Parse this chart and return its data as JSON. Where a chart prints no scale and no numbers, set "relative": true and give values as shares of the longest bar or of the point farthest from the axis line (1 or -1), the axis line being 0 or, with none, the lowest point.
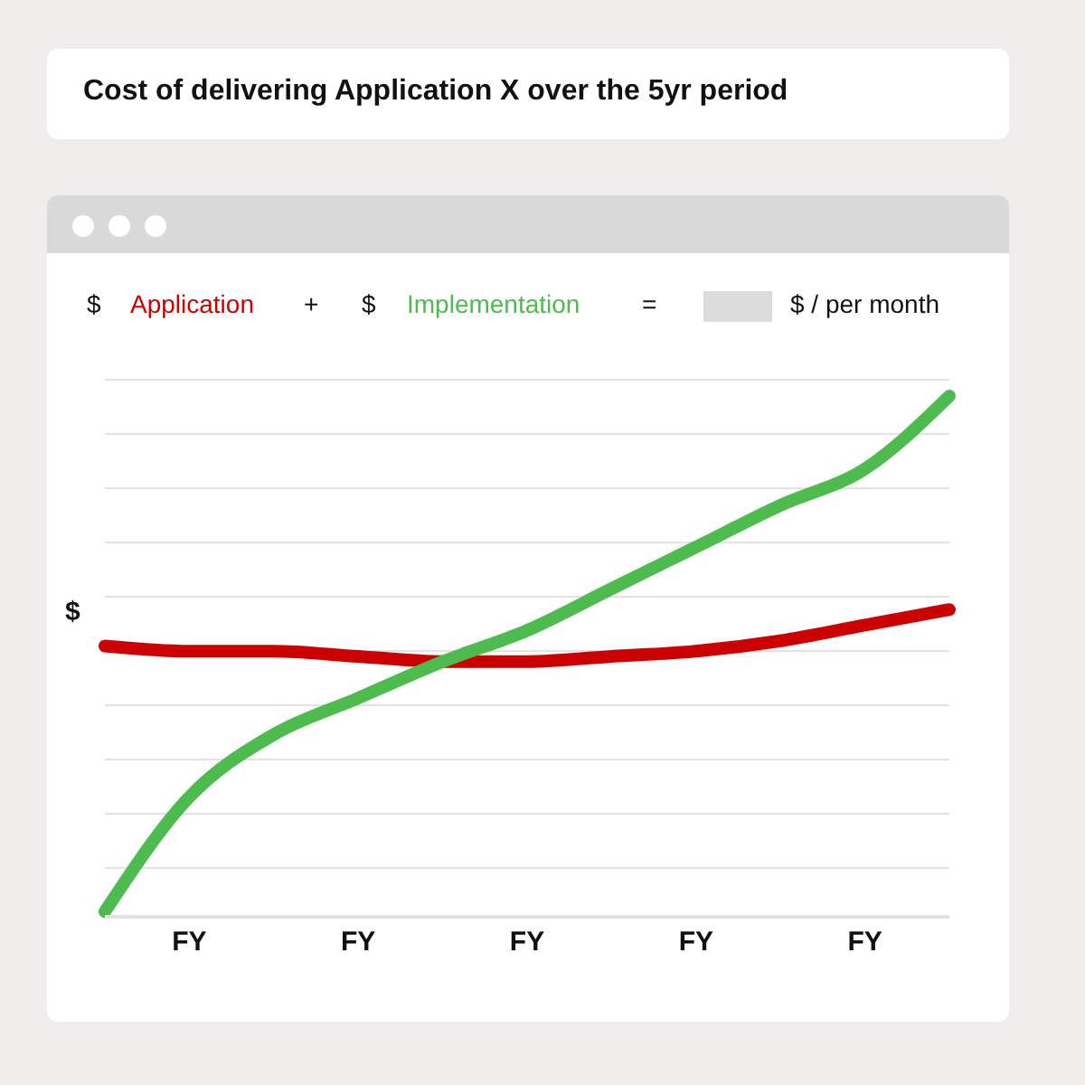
{
  "chart_data": {
    "type": "line",
    "title": "Cost of delivering Application X over the 5yr period",
    "ylabel": "$",
    "relative": true,
    "grid": "y",
    "legend": "top",
    "marker": "none",
    "line_style": "solid",
    "categories": [
      null,
      "FY",
      null,
      "FY",
      null,
      "FY",
      null,
      "FY",
      null,
      "FY",
      null
    ],
    "annotations": [
      "$",
      "+",
      "$",
      "=",
      "$ / per month"
    ],
    "series": [
      {
        "name": "Application",
        "color": "#cc0000",
        "values": [
          0.52,
          0.51,
          0.51,
          0.5,
          0.49,
          0.49,
          0.5,
          0.51,
          0.53,
          0.56,
          0.59
        ]
      },
      {
        "name": "Implementation",
        "color": "#4dbb4d",
        "values": [
          0.01,
          0.23,
          0.35,
          0.42,
          0.49,
          0.55,
          0.63,
          0.71,
          0.79,
          0.86,
          1
        ]
      }
    ]
  }
}
